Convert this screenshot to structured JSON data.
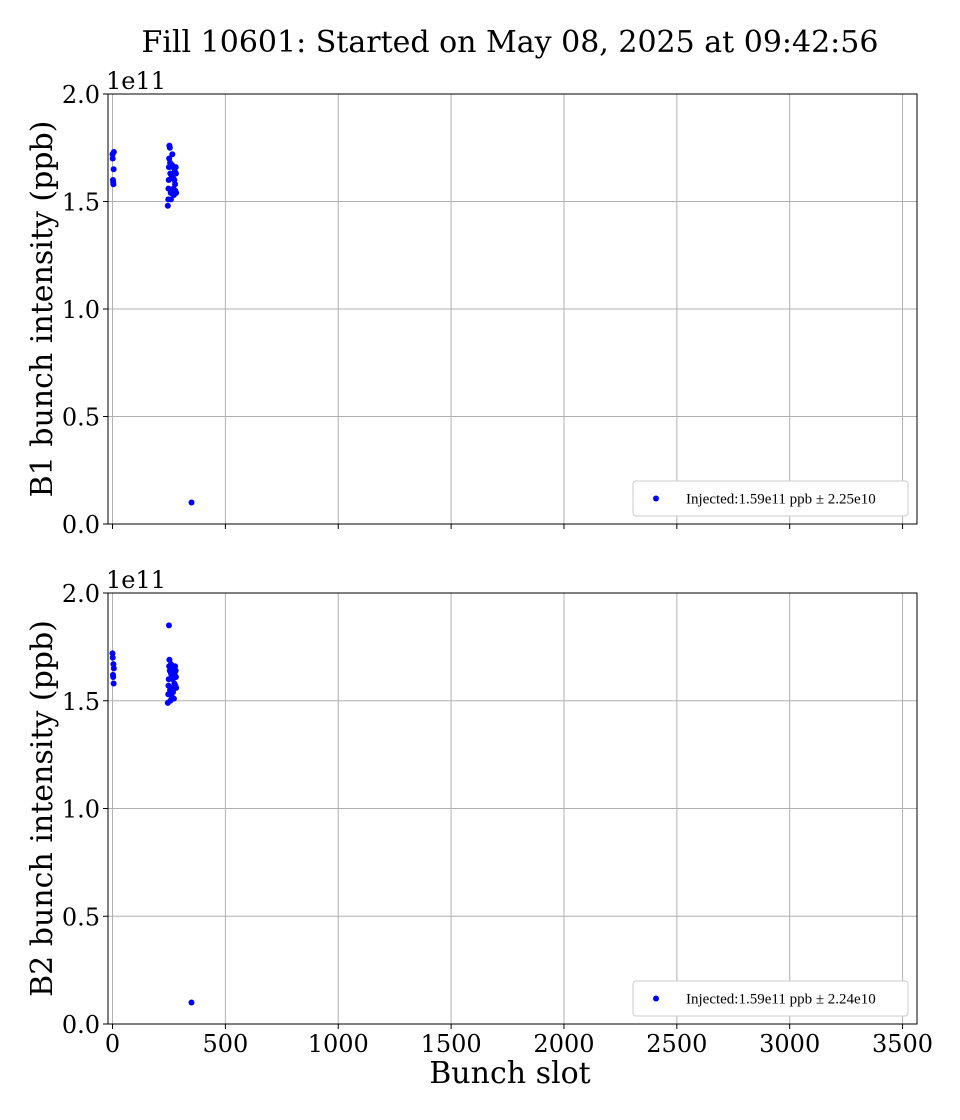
{
  "chart_data": {
    "title": "Fill 10601: Started on May 08, 2025 at 09:42:56",
    "type": "scatter",
    "xlabel": "Bunch slot",
    "x_ticks": [
      "0",
      "500",
      "1000",
      "1500",
      "2000",
      "2500",
      "3000",
      "3500"
    ],
    "xlim": [
      -20,
      3564
    ],
    "grid": true,
    "legend_position": "lower right",
    "panels": [
      {
        "ylabel": "B1 bunch intensity (ppb)",
        "y_offset_label": "1e11",
        "y_ticks": [
          "0.0",
          "0.5",
          "1.0",
          "1.5",
          "2.0"
        ],
        "ylim": [
          0,
          2.0
        ],
        "series": [
          {
            "name": "Injected:1.59e11 ppb ± 2.25e10",
            "color": "#0000ff",
            "points": [
              [
                0,
                1.72
              ],
              [
                1,
                1.7
              ],
              [
                2,
                1.6
              ],
              [
                3,
                1.59
              ],
              [
                4,
                1.58
              ],
              [
                5,
                1.65
              ],
              [
                6,
                1.73
              ],
              [
                245,
                1.48
              ],
              [
                247,
                1.51
              ],
              [
                248,
                1.56
              ],
              [
                249,
                1.6
              ],
              [
                250,
                1.66
              ],
              [
                251,
                1.7
              ],
              [
                252,
                1.76
              ],
              [
                254,
                1.75
              ],
              [
                255,
                1.68
              ],
              [
                256,
                1.63
              ],
              [
                258,
                1.54
              ],
              [
                259,
                1.51
              ],
              [
                261,
                1.55
              ],
              [
                262,
                1.62
              ],
              [
                264,
                1.67
              ],
              [
                265,
                1.72
              ],
              [
                267,
                1.66
              ],
              [
                268,
                1.61
              ],
              [
                270,
                1.56
              ],
              [
                272,
                1.53
              ],
              [
                274,
                1.6
              ],
              [
                276,
                1.64
              ],
              [
                277,
                1.58
              ],
              [
                278,
                1.55
              ],
              [
                280,
                1.66
              ],
              [
                281,
                1.63
              ],
              [
                282,
                1.54
              ],
              [
                350,
                0.1
              ]
            ]
          }
        ]
      },
      {
        "ylabel": "B2 bunch intensity (ppb)",
        "y_offset_label": "1e11",
        "y_ticks": [
          "0.0",
          "0.5",
          "1.0",
          "1.5",
          "2.0"
        ],
        "ylim": [
          0,
          2.0
        ],
        "series": [
          {
            "name": "Injected:1.59e11 ppb ± 2.24e10",
            "color": "#0000ff",
            "points": [
              [
                0,
                1.72
              ],
              [
                1,
                1.7
              ],
              [
                2,
                1.62
              ],
              [
                3,
                1.61
              ],
              [
                4,
                1.67
              ],
              [
                5,
                1.58
              ],
              [
                6,
                1.65
              ],
              [
                245,
                1.49
              ],
              [
                247,
                1.53
              ],
              [
                248,
                1.57
              ],
              [
                249,
                1.6
              ],
              [
                250,
                1.85
              ],
              [
                251,
                1.66
              ],
              [
                252,
                1.69
              ],
              [
                254,
                1.64
              ],
              [
                255,
                1.55
              ],
              [
                256,
                1.5
              ],
              [
                258,
                1.63
              ],
              [
                259,
                1.67
              ],
              [
                261,
                1.62
              ],
              [
                262,
                1.52
              ],
              [
                264,
                1.56
              ],
              [
                265,
                1.66
              ],
              [
                267,
                1.6
              ],
              [
                268,
                1.54
              ],
              [
                270,
                1.65
              ],
              [
                272,
                1.51
              ],
              [
                274,
                1.58
              ],
              [
                276,
                1.62
              ],
              [
                277,
                1.66
              ],
              [
                278,
                1.57
              ],
              [
                280,
                1.64
              ],
              [
                281,
                1.61
              ],
              [
                282,
                1.56
              ],
              [
                350,
                0.1
              ]
            ]
          }
        ]
      }
    ]
  }
}
